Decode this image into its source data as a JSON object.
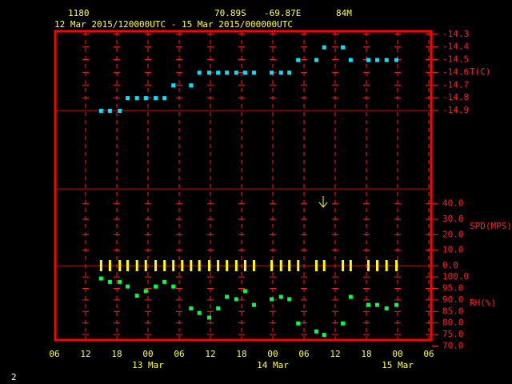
{
  "header": {
    "station": "1180",
    "lat": "70.89S",
    "lon": "-69.87E",
    "elev": "84M",
    "period": "12 Mar 2015/120000UTC - 15 Mar 2015/000000UTC",
    "page": "2"
  },
  "x_axis": {
    "xlim": [
      0,
      72
    ],
    "xticks": [
      {
        "value": 0,
        "label": "06"
      },
      {
        "value": 6,
        "label": "12"
      },
      {
        "value": 12,
        "label": "18"
      },
      {
        "value": 18,
        "label": "00"
      },
      {
        "value": 24,
        "label": "06"
      },
      {
        "value": 30,
        "label": "12"
      },
      {
        "value": 36,
        "label": "18"
      },
      {
        "value": 42,
        "label": "00"
      },
      {
        "value": 48,
        "label": "06"
      },
      {
        "value": 54,
        "label": "12"
      },
      {
        "value": 60,
        "label": "18"
      },
      {
        "value": 66,
        "label": "00"
      },
      {
        "value": 72,
        "label": "06"
      }
    ],
    "day_labels": [
      {
        "value": 18,
        "label": "13 Mar"
      },
      {
        "value": 42,
        "label": "14 Mar"
      },
      {
        "value": 66,
        "label": "15 Mar"
      }
    ]
  },
  "chart_data": [
    {
      "type": "scatter",
      "y_label": "T(C)",
      "color": "#00e5ff",
      "x": [
        8.9,
        10.6,
        12.5,
        14.0,
        15.8,
        17.5,
        19.4,
        21.1,
        22.8,
        26.2,
        27.8,
        29.7,
        31.4,
        33.1,
        34.9,
        36.6,
        38.3,
        41.7,
        43.5,
        45.1,
        46.8,
        50.3,
        51.8,
        55.4,
        56.9,
        60.3,
        62.0,
        63.8,
        65.7
      ],
      "values": [
        -14.9,
        -14.9,
        -14.9,
        -14.8,
        -14.8,
        -14.8,
        -14.8,
        -14.8,
        -14.7,
        -14.7,
        -14.6,
        -14.6,
        -14.6,
        -14.6,
        -14.6,
        -14.6,
        -14.6,
        -14.6,
        -14.6,
        -14.6,
        -14.5,
        -14.5,
        -14.4,
        -14.4,
        -14.5,
        -14.5,
        -14.5,
        -14.5,
        -14.5
      ],
      "ylim": [
        -14.9,
        -14.27
      ],
      "yticks": [
        -14.3,
        -14.4,
        -14.5,
        -14.6,
        -14.7,
        -14.8,
        -14.9
      ]
    },
    {
      "type": "bar",
      "y_label": "SPD(MPS)",
      "color": "#ffff00",
      "x": [
        8.9,
        10.6,
        12.5,
        14.0,
        15.8,
        17.5,
        19.4,
        21.1,
        22.8,
        24.5,
        26.2,
        27.8,
        29.7,
        31.4,
        33.1,
        34.9,
        36.6,
        38.3,
        41.7,
        43.5,
        45.1,
        46.8,
        50.3,
        51.8,
        55.4,
        56.9,
        60.3,
        62.0,
        63.8,
        65.7
      ],
      "values": [
        0,
        0,
        0,
        0,
        0,
        0,
        0,
        0,
        0,
        0,
        0,
        0,
        0,
        0,
        0,
        0,
        0,
        0,
        0,
        0,
        0,
        0,
        0,
        0,
        0,
        0,
        0,
        0,
        0,
        0
      ],
      "ylim": [
        0,
        49.7
      ],
      "yticks": [
        {
          "value": 40,
          "label": "40.0"
        },
        {
          "value": 30,
          "label": "30.0"
        },
        {
          "value": 20,
          "label": "20.0"
        },
        {
          "value": 10,
          "label": "10.0"
        },
        {
          "value": 0,
          "label": "0.0"
        }
      ]
    },
    {
      "type": "scatter",
      "y_label": "RH(%)",
      "color": "#00ff40",
      "x": [
        8.9,
        10.6,
        12.5,
        14.0,
        15.8,
        17.5,
        19.4,
        21.1,
        22.8,
        26.2,
        27.8,
        29.7,
        31.4,
        33.1,
        34.9,
        36.6,
        38.3,
        41.7,
        43.5,
        45.1,
        46.8,
        50.3,
        51.8,
        55.4,
        56.9,
        60.3,
        62.0,
        63.8,
        65.7
      ],
      "values": [
        99.5,
        98,
        98,
        96,
        92,
        94,
        96,
        98,
        96,
        86.5,
        84.5,
        82.5,
        86.5,
        91.5,
        90.5,
        94,
        88,
        90.5,
        91.5,
        90.5,
        80,
        76.5,
        75,
        80,
        91.5,
        88,
        88,
        86.5,
        88
      ],
      "ylim": [
        72.6,
        104.9
      ],
      "yticks": [
        {
          "value": 100,
          "label": "100.0"
        },
        {
          "value": 95,
          "label": "95.0"
        },
        {
          "value": 90,
          "label": "90.0"
        },
        {
          "value": 85,
          "label": "85.0"
        },
        {
          "value": 80,
          "label": "80.0"
        },
        {
          "value": 75,
          "label": "75.0"
        },
        {
          "value": 70,
          "label": "70.0"
        }
      ]
    }
  ]
}
